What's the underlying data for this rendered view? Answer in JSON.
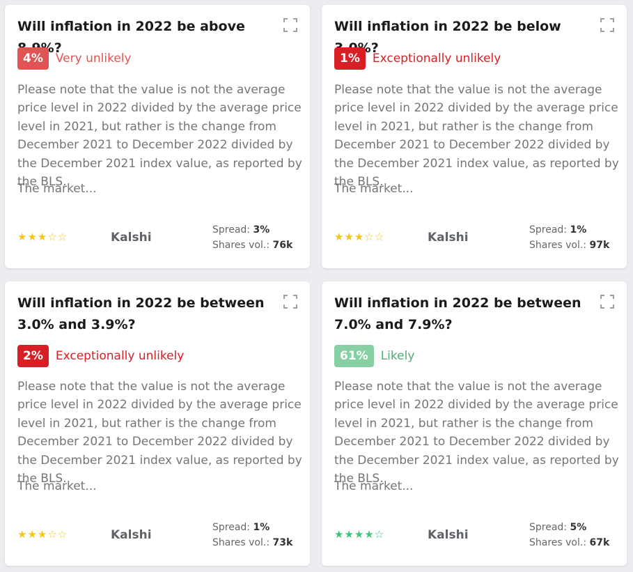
{
  "cards": [
    {
      "title": "Will inflation in 2022 be above 8.9%?",
      "probability": "4%",
      "likelihood": "Very unlikely",
      "badge_color": "#e05454",
      "label_color": "#e05454",
      "description": "Please note that the value is not the average price level in 2022 divided by the average price level in 2021, but rather is the change from December 2021 to December 2022 divided by the December 2021 index value, as reported by the BLS.",
      "more": "The market...",
      "rating": 3,
      "stars": "★★★☆☆",
      "star_color": "#f5c518",
      "platform": "Kalshi",
      "spread_label": "Spread:",
      "spread": "3%",
      "volume_label": "Shares vol.:",
      "volume": "76k"
    },
    {
      "title": "Will inflation in 2022 be below 3.0%?",
      "probability": "1%",
      "likelihood": "Exceptionally unlikely",
      "badge_color": "#d91f26",
      "label_color": "#d91f26",
      "description": "Please note that the value is not the average price level in 2022 divided by the average price level in 2021, but rather is the change from December 2021 to December 2022 divided by the December 2021 index value, as reported by the BLS.",
      "more": "The market...",
      "rating": 3,
      "stars": "★★★☆☆",
      "star_color": "#f5c518",
      "platform": "Kalshi",
      "spread_label": "Spread:",
      "spread": "1%",
      "volume_label": "Shares vol.:",
      "volume": "97k"
    },
    {
      "title": "Will inflation in 2022 be between 3.0% and 3.9%?",
      "probability": "2%",
      "likelihood": "Exceptionally unlikely",
      "badge_color": "#d91f26",
      "label_color": "#d91f26",
      "description": "Please note that the value is not the average price level in 2022 divided by the average price level in 2021, but rather is the change from December 2021 to December 2022 divided by the December 2021 index value, as reported by the BLS.",
      "more": "The market...",
      "rating": 3,
      "stars": "★★★☆☆",
      "star_color": "#f5c518",
      "platform": "Kalshi",
      "spread_label": "Spread:",
      "spread": "1%",
      "volume_label": "Shares vol.:",
      "volume": "73k"
    },
    {
      "title": "Will inflation in 2022 be between 7.0% and 7.9%?",
      "probability": "61%",
      "likelihood": "Likely",
      "badge_color": "#86d0a3",
      "label_color": "#4caf73",
      "description": "Please note that the value is not the average price level in 2022 divided by the average price level in 2021, but rather is the change from December 2021 to December 2022 divided by the December 2021 index value, as reported by the BLS.",
      "more": "The market...",
      "rating": 4,
      "stars": "★★★★☆",
      "star_color": "#3ec47a",
      "platform": "Kalshi",
      "spread_label": "Spread:",
      "spread": "5%",
      "volume_label": "Shares vol.:",
      "volume": "67k"
    }
  ],
  "icons": {
    "expand": "expand-icon"
  }
}
